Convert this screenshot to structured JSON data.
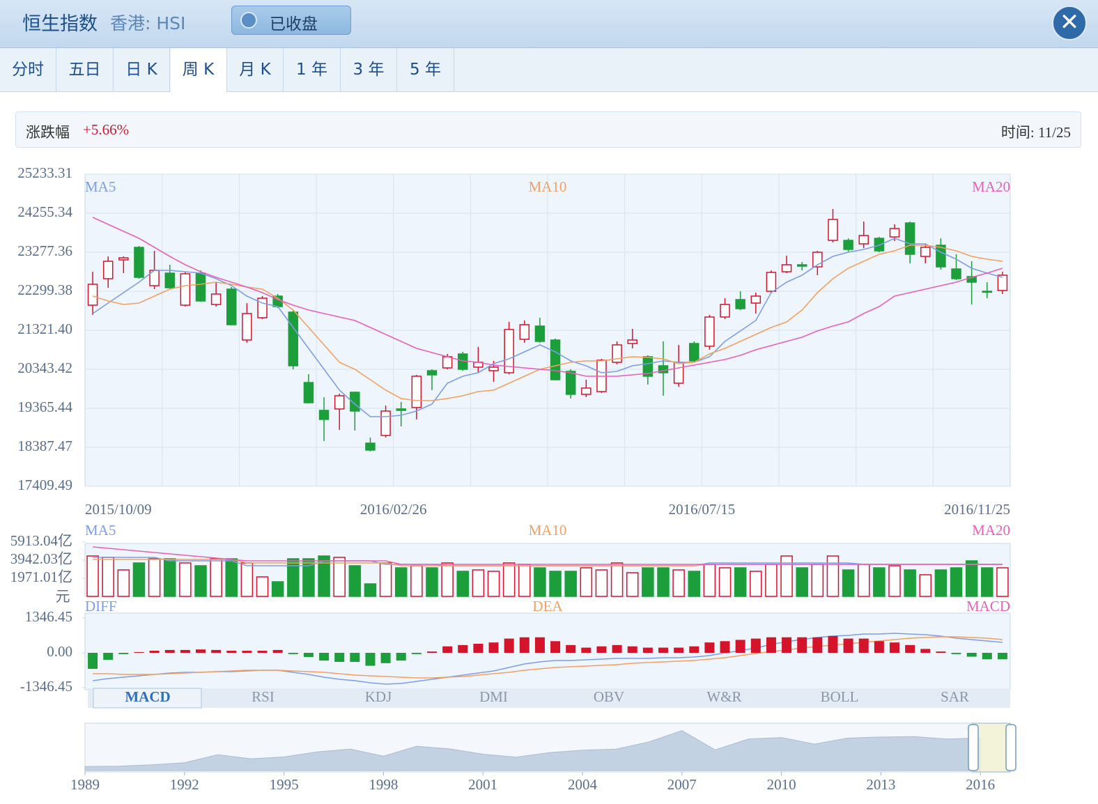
{
  "header": {
    "title": "恒生指数",
    "subtitle": "香港: HSI",
    "status": "已收盘"
  },
  "tabs": [
    "分时",
    "五日",
    "日 K",
    "周 K",
    "月 K",
    "1 年",
    "3 年",
    "5 年"
  ],
  "active_tab": 3,
  "info": {
    "change_label": "涨跌幅",
    "change": "+5.66%",
    "time": "时间: 11/25"
  },
  "indicator_tabs": [
    "MACD",
    "RSI",
    "KDJ",
    "DMI",
    "OBV",
    "W&R",
    "BOLL",
    "SAR"
  ],
  "active_indicator": 0,
  "chart_data": [
    {
      "type": "candlestick",
      "up_color": "#d4142a",
      "down_color": "#1c9e3a",
      "categories": [
        "2015/10/09",
        null,
        null,
        null,
        null,
        null,
        null,
        null,
        null,
        null,
        null,
        null,
        null,
        null,
        null,
        null,
        null,
        null,
        null,
        null,
        "2016/02/26",
        null,
        null,
        null,
        null,
        null,
        null,
        null,
        null,
        null,
        null,
        null,
        null,
        null,
        null,
        null,
        null,
        null,
        null,
        null,
        "2016/07/15",
        null,
        null,
        null,
        null,
        null,
        null,
        null,
        null,
        null,
        null,
        null,
        null,
        null,
        null,
        null,
        null,
        null,
        null,
        "2016/11/25"
      ],
      "open": [
        21950,
        22614,
        23085,
        23399,
        22439,
        22753,
        21950,
        22753,
        21967,
        22352,
        21077,
        21636,
        22177,
        21775,
        20011,
        19313,
        19348,
        19767,
        18492,
        18684,
        19348,
        19383,
        20308,
        20378,
        20727,
        20396,
        20308,
        20256,
        21094,
        21426,
        21077,
        20291,
        19715,
        19784,
        20518,
        20989,
        20658,
        20431,
        19994,
        20989,
        20920,
        21653,
        22090,
        22002,
        22299,
        22788,
        22963,
        22910,
        23574,
        23574,
        23487,
        23626,
        23661,
        24011,
        23172,
        23452,
        22858,
        22666,
        22299,
        22317
      ],
      "high": [
        22788,
        23172,
        23172,
        23434,
        23312,
        22963,
        22788,
        22823,
        22526,
        22404,
        22002,
        22177,
        22229,
        21810,
        20221,
        19645,
        19732,
        19784,
        18632,
        19435,
        19522,
        20203,
        20343,
        20727,
        20780,
        20902,
        20553,
        21531,
        21566,
        21636,
        21112,
        20343,
        20081,
        20605,
        21042,
        21356,
        20693,
        21042,
        20954,
        21042,
        21705,
        22124,
        22299,
        22264,
        22823,
        23190,
        23033,
        23312,
        24360,
        23626,
        24046,
        23661,
        23976,
        24046,
        23487,
        23626,
        23225,
        23050,
        22526,
        22788
      ],
      "low": [
        21706,
        22387,
        22753,
        22614,
        22352,
        22352,
        21915,
        22037,
        21915,
        21443,
        21007,
        21601,
        21880,
        20343,
        19488,
        18544,
        18824,
        18806,
        18282,
        18632,
        18911,
        19086,
        19819,
        20343,
        20308,
        20256,
        20029,
        20221,
        21007,
        21007,
        20064,
        19610,
        19645,
        19750,
        20466,
        20867,
        19959,
        19679,
        19907,
        20518,
        20832,
        21601,
        21828,
        21740,
        22264,
        22753,
        22823,
        22701,
        23521,
        23277,
        23382,
        23277,
        23556,
        22998,
        22998,
        22841,
        22579,
        21967,
        22124,
        22229
      ],
      "close": [
        22474,
        23050,
        23137,
        22648,
        22823,
        22387,
        22736,
        22055,
        22229,
        21461,
        21740,
        22124,
        21915,
        20431,
        19505,
        19086,
        19680,
        19296,
        18317,
        19296,
        19313,
        20169,
        20203,
        20657,
        20343,
        20518,
        20396,
        21339,
        21461,
        21042,
        20081,
        19715,
        19872,
        20570,
        20954,
        21077,
        20169,
        20256,
        20518,
        20553,
        21653,
        21967,
        21862,
        22177,
        22771,
        22963,
        22928,
        23277,
        24098,
        23347,
        23696,
        23312,
        23871,
        23225,
        23399,
        22910,
        22614,
        22526,
        22282,
        22701
      ],
      "series": [
        {
          "name": "MA5",
          "color": "#7e9de6",
          "values": [
            21740,
            22002,
            22264,
            22526,
            22823,
            22823,
            22788,
            22753,
            22613,
            22439,
            22177,
            22002,
            21915,
            21391,
            20867,
            20343,
            19819,
            19470,
            19156,
            19156,
            19190,
            19295,
            19470,
            19994,
            20168,
            20256,
            20483,
            20605,
            20780,
            20954,
            20780,
            20553,
            20430,
            20256,
            20291,
            20430,
            20483,
            20553,
            20518,
            20518,
            20657,
            21042,
            21304,
            21566,
            22264,
            22526,
            22701,
            22963,
            23172,
            23277,
            23347,
            23452,
            23626,
            23487,
            23487,
            23277,
            23102,
            22875,
            22753,
            22648
          ]
        },
        {
          "name": "MA10",
          "color": "#f3a060",
          "values": [
            22177,
            22055,
            21967,
            22002,
            22177,
            22351,
            22439,
            22474,
            22526,
            22474,
            22404,
            22351,
            22124,
            21828,
            21391,
            20954,
            20518,
            20343,
            20081,
            19819,
            19610,
            19557,
            19557,
            19610,
            19679,
            19784,
            19819,
            19994,
            20168,
            20343,
            20430,
            20518,
            20553,
            20553,
            20605,
            20657,
            20640,
            20605,
            20483,
            20518,
            20727,
            20867,
            21042,
            21216,
            21391,
            21531,
            21828,
            22264,
            22613,
            22875,
            23050,
            23225,
            23312,
            23452,
            23452,
            23399,
            23312,
            23172,
            23102,
            23050
          ]
        },
        {
          "name": "MA20",
          "color": "#e860b8",
          "values": [
            24150,
            23976,
            23801,
            23626,
            23399,
            23172,
            22963,
            22788,
            22648,
            22526,
            22404,
            22264,
            22089,
            21950,
            21828,
            21740,
            21653,
            21566,
            21391,
            21216,
            21042,
            20867,
            20762,
            20657,
            20553,
            20518,
            20448,
            20413,
            20378,
            20343,
            20308,
            20256,
            20168,
            20168,
            20168,
            20203,
            20238,
            20308,
            20378,
            20448,
            20518,
            20588,
            20692,
            20832,
            20937,
            21042,
            21146,
            21304,
            21426,
            21531,
            21740,
            21915,
            22177,
            22264,
            22351,
            22439,
            22526,
            22648,
            22753,
            22875
          ]
        }
      ],
      "ylim": [
        17409.49,
        25233.31
      ],
      "yticks": [
        17409.49,
        18387.47,
        19365.44,
        20343.42,
        {
          "value": 21321.4,
          "label": "21321.40"
        },
        22299.38,
        23277.36,
        24255.34,
        25233.31
      ],
      "grid": true
    },
    {
      "type": "bar",
      "unit": "元",
      "values": [
        4397,
        4245,
        2880,
        3639,
        4094,
        4094,
        3639,
        3336,
        4094,
        4094,
        3639,
        2122,
        1592,
        4094,
        4094,
        4397,
        4245,
        3336,
        1364,
        3639,
        3108,
        3336,
        3108,
        3639,
        2729,
        2880,
        2729,
        3639,
        3487,
        3108,
        2729,
        2729,
        3108,
        2880,
        3639,
        2577,
        3108,
        3108,
        2880,
        2729,
        3487,
        3108,
        3108,
        2729,
        3487,
        4397,
        3108,
        3487,
        4397,
        2880,
        3487,
        3108,
        3336,
        2880,
        2350,
        2880,
        3108,
        3866,
        3108,
        3108
      ],
      "series": [
        {
          "name": "MA5",
          "color": "#7e9de6",
          "values": [
            4246,
            4246,
            4246,
            4246,
            4246,
            3867,
            3867,
            3867,
            3867,
            3867,
            3336,
            3336,
            3336,
            3336,
            3336,
            3867,
            3867,
            3867,
            3867,
            3488,
            3488,
            3488,
            3488,
            3336,
            3336,
            3336,
            3336,
            3336,
            3336,
            3336,
            3336,
            3336,
            3336,
            3336,
            3336,
            3336,
            3336,
            3336,
            3336,
            3336,
            3639,
            3639,
            3639,
            3639,
            3639,
            3639,
            3639,
            3639,
            3639,
            3639,
            3488,
            3488,
            3488,
            3488,
            3488,
            3488,
            3488,
            3488,
            3488,
            3488
          ]
        },
        {
          "name": "MA10",
          "color": "#f3a060",
          "values": [
            4018,
            4018,
            4018,
            4018,
            4018,
            4018,
            4018,
            4018,
            4018,
            4018,
            3639,
            3639,
            3639,
            3639,
            3639,
            3639,
            3639,
            3639,
            3639,
            3639,
            3336,
            3336,
            3336,
            3336,
            3336,
            3336,
            3336,
            3336,
            3336,
            3336,
            3336,
            3336,
            3336,
            3336,
            3336,
            3336,
            3336,
            3336,
            3336,
            3336,
            3488,
            3488,
            3488,
            3488,
            3488,
            3488,
            3488,
            3488,
            3488,
            3488,
            3488,
            3488,
            3488,
            3488,
            3488,
            3488,
            3488,
            3488,
            3488,
            3488
          ]
        },
        {
          "name": "MA20",
          "color": "#e860b8",
          "values": [
            5383,
            5232,
            5080,
            4928,
            4777,
            4625,
            4473,
            4322,
            4170,
            4018,
            3867,
            3867,
            3867,
            3867,
            3867,
            3867,
            3867,
            3867,
            3867,
            3867,
            3488,
            3488,
            3488,
            3488,
            3488,
            3488,
            3488,
            3488,
            3488,
            3488,
            3488,
            3488,
            3488,
            3488,
            3488,
            3488,
            3488,
            3488,
            3488,
            3488,
            3488,
            3488,
            3488,
            3488,
            3488,
            3488,
            3488,
            3488,
            3488,
            3488,
            3488,
            3488,
            3488,
            3488,
            3488,
            3488,
            3488,
            3488,
            3488,
            3488
          ]
        }
      ],
      "ylim": [
        0,
        5913.04
      ],
      "yticks": [
        {
          "value": 1971.01,
          "label": "1971.01亿"
        },
        {
          "value": 3942.03,
          "label": "3942.03亿"
        },
        {
          "value": 5913.04,
          "label": "5913.04亿"
        }
      ]
    },
    {
      "type": "line",
      "up_color": "#d4142a",
      "down_color": "#1c9e3a",
      "series": [
        {
          "name": "DIFF",
          "color": "#7e9de6",
          "values": [
            -1077,
            -996,
            -943,
            -889,
            -835,
            -781,
            -754,
            -754,
            -727,
            -727,
            -700,
            -673,
            -673,
            -754,
            -835,
            -943,
            -1023,
            -1077,
            -1158,
            -1212,
            -1185,
            -1104,
            -1023,
            -943,
            -862,
            -781,
            -700,
            -566,
            -431,
            -350,
            -296,
            -296,
            -269,
            -242,
            -215,
            -215,
            -215,
            -189,
            -189,
            -162,
            -108,
            0,
            81,
            189,
            323,
            431,
            512,
            592,
            646,
            673,
            727,
            727,
            754,
            727,
            700,
            646,
            566,
            512,
            458,
            404
          ]
        },
        {
          "name": "DEA",
          "color": "#f3a060",
          "values": [
            -808,
            -808,
            -835,
            -835,
            -835,
            -808,
            -781,
            -754,
            -727,
            -700,
            -673,
            -673,
            -673,
            -700,
            -727,
            -754,
            -808,
            -862,
            -889,
            -916,
            -943,
            -969,
            -969,
            -943,
            -916,
            -862,
            -808,
            -754,
            -673,
            -619,
            -566,
            -539,
            -512,
            -485,
            -458,
            -404,
            -377,
            -350,
            -323,
            -296,
            -242,
            -189,
            -108,
            -27,
            54,
            108,
            189,
            242,
            296,
            350,
            404,
            458,
            512,
            566,
            592,
            619,
            619,
            592,
            566,
            512
          ]
        },
        {
          "name": "MACD",
          "type": "bar",
          "color": "#e860b8",
          "values": [
            -620,
            -270,
            -50,
            30,
            80,
            110,
            110,
            130,
            110,
            80,
            80,
            80,
            110,
            -50,
            -160,
            -300,
            -350,
            -350,
            -500,
            -400,
            -300,
            -50,
            50,
            250,
            300,
            350,
            400,
            550,
            600,
            600,
            450,
            300,
            200,
            250,
            300,
            250,
            200,
            200,
            200,
            250,
            400,
            450,
            500,
            550,
            600,
            600,
            600,
            600,
            650,
            550,
            550,
            450,
            400,
            300,
            150,
            50,
            -50,
            -150,
            -250,
            -250
          ]
        }
      ],
      "ylim": [
        -1346.45,
        1346.45
      ],
      "yticks": [
        -1346.45,
        {
          "value": 0,
          "label": "0.00"
        },
        1346.45
      ]
    },
    {
      "type": "area",
      "color": "#c3d2e2",
      "x": [
        1989,
        1990,
        1991,
        1992,
        1993,
        1994,
        1995,
        1996,
        1997,
        1998,
        1999,
        2000,
        2001,
        2002,
        2003,
        2004,
        2005,
        2006,
        2007,
        2008,
        2009,
        2010,
        2011,
        2012,
        2013,
        2014,
        2015,
        2016
      ],
      "values": [
        2800,
        3000,
        4000,
        5500,
        11000,
        8200,
        9500,
        13000,
        15000,
        10000,
        16900,
        15100,
        11400,
        9300,
        12500,
        14200,
        14900,
        19900,
        27800,
        14400,
        21900,
        23000,
        18400,
        22600,
        23300,
        23600,
        21900,
        22700
      ],
      "xlim": [
        1989,
        2016.9
      ],
      "ylim": [
        0,
        32000
      ],
      "xticks": [
        1989,
        1992,
        1995,
        1998,
        2001,
        2004,
        2007,
        2010,
        2013,
        2016
      ]
    }
  ]
}
